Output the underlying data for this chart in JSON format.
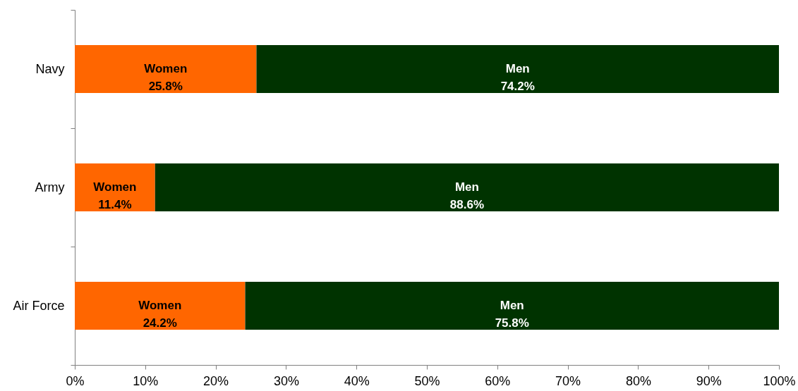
{
  "chart_data": {
    "type": "bar",
    "orientation": "horizontal",
    "stacked": true,
    "categories": [
      "Navy",
      "Army",
      "Air Force"
    ],
    "series": [
      {
        "name": "Women",
        "color": "#ff6600",
        "values": [
          25.8,
          11.4,
          24.2
        ],
        "value_labels": [
          "25.8%",
          "11.4%",
          "24.2%"
        ]
      },
      {
        "name": "Men",
        "color": "#003300",
        "values": [
          74.2,
          88.6,
          75.8
        ],
        "value_labels": [
          "74.2%",
          "88.6%",
          "75.8%"
        ]
      }
    ],
    "xlim": [
      0,
      100
    ],
    "xticks": [
      {
        "value": 0,
        "label": "0%"
      },
      {
        "value": 10,
        "label": "10%"
      },
      {
        "value": 20,
        "label": "20%"
      },
      {
        "value": 30,
        "label": "30%"
      },
      {
        "value": 40,
        "label": "40%"
      },
      {
        "value": 50,
        "label": "50%"
      },
      {
        "value": 60,
        "label": "60%"
      },
      {
        "value": 70,
        "label": "70%"
      },
      {
        "value": 80,
        "label": "80%"
      },
      {
        "value": 90,
        "label": "90%"
      },
      {
        "value": 100,
        "label": "100%"
      }
    ]
  }
}
